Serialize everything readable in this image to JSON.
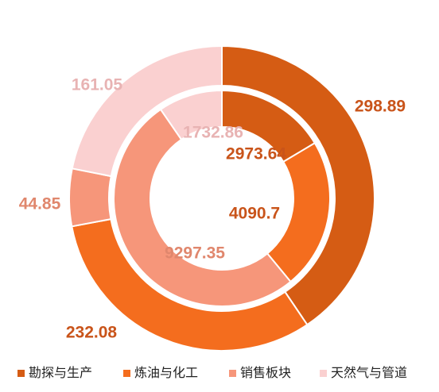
{
  "chart_data": {
    "type": "donut",
    "categories": [
      "勘探与生产",
      "炼油与化工",
      "销售板块",
      "天然气与管道"
    ],
    "colors": [
      "#d55c14",
      "#f46d1e",
      "#f6967a",
      "#fad0d0"
    ],
    "label_colors": [
      "#c9541a",
      "#c9541a",
      "#e0876d",
      "#e8b3b3"
    ],
    "series": [
      {
        "values": [
          298.89,
          232.08,
          44.85,
          161.05
        ]
      },
      {
        "values": [
          2973.64,
          4090.7,
          9297.35,
          1732.86
        ]
      }
    ],
    "legend": "bottom"
  }
}
